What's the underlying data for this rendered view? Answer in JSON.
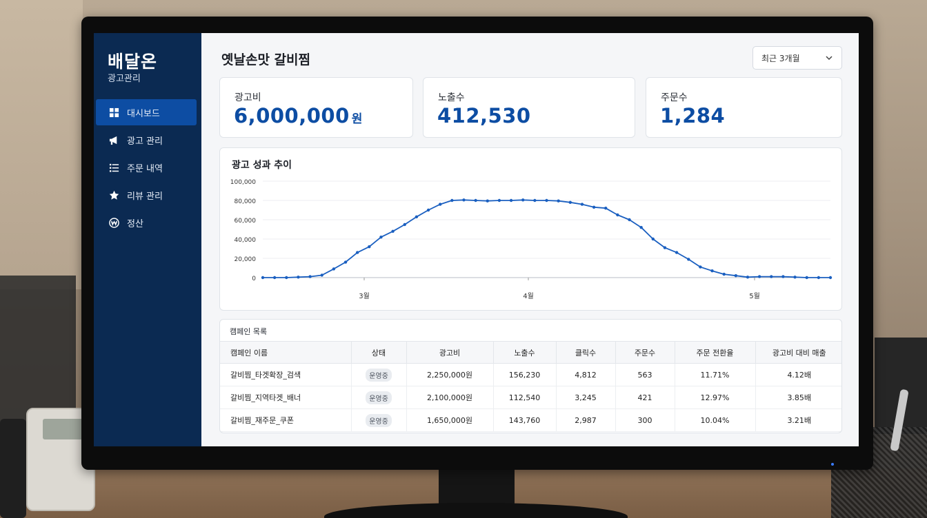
{
  "sidebar": {
    "brand": "배달온",
    "brand_sub": "광고관리",
    "items": [
      {
        "label": "대시보드",
        "icon": "grid-icon",
        "active": true
      },
      {
        "label": "광고 관리",
        "icon": "megaphone-icon"
      },
      {
        "label": "주문 내역",
        "icon": "list-icon"
      },
      {
        "label": "리뷰 관리",
        "icon": "star-icon"
      },
      {
        "label": "정산",
        "icon": "won-icon"
      }
    ]
  },
  "header": {
    "title": "옛날손맛 갈비찜",
    "period": "최근 3개월"
  },
  "kpis": [
    {
      "label": "광고비",
      "value": "6,000,000",
      "unit": "원"
    },
    {
      "label": "노출수",
      "value": "412,530",
      "unit": ""
    },
    {
      "label": "주문수",
      "value": "1,284",
      "unit": ""
    }
  ],
  "chart_data": {
    "type": "line",
    "title": "광고 성과 추이",
    "ylim": [
      0,
      100000
    ],
    "yticks": [
      "100,000",
      "80,000",
      "60,000",
      "40,000",
      "20,000",
      "0"
    ],
    "xticks": [
      "3월",
      "4월",
      "5월"
    ],
    "grid": true,
    "color": "#1a5fc0",
    "values": [
      0,
      0,
      0,
      500,
      1000,
      2500,
      9000,
      16000,
      26000,
      32000,
      42000,
      48000,
      55000,
      63000,
      70000,
      76000,
      80000,
      80500,
      80000,
      79500,
      80000,
      80000,
      80500,
      80000,
      80000,
      79500,
      78000,
      76000,
      73000,
      72000,
      65000,
      60000,
      52000,
      40000,
      31000,
      26000,
      19000,
      11000,
      7000,
      3500,
      2000,
      500,
      1000,
      1000,
      1000,
      500,
      0,
      0,
      0
    ]
  },
  "table": {
    "title": "캠페인 목록",
    "columns": [
      "캠페인 이름",
      "상태",
      "광고비",
      "노출수",
      "클릭수",
      "주문수",
      "주문 전환율",
      "광고비 대비 매출"
    ],
    "rows": [
      [
        "갈비찜_타겟확장_검색",
        "운영중",
        "2,250,000원",
        "156,230",
        "4,812",
        "563",
        "11.71%",
        "4.12배"
      ],
      [
        "갈비찜_지역타겟_배너",
        "운영중",
        "2,100,000원",
        "112,540",
        "3,245",
        "421",
        "12.97%",
        "3.85배"
      ],
      [
        "갈비찜_재주문_쿠폰",
        "운영중",
        "1,650,000원",
        "143,760",
        "2,987",
        "300",
        "10.04%",
        "3.21배"
      ]
    ]
  }
}
